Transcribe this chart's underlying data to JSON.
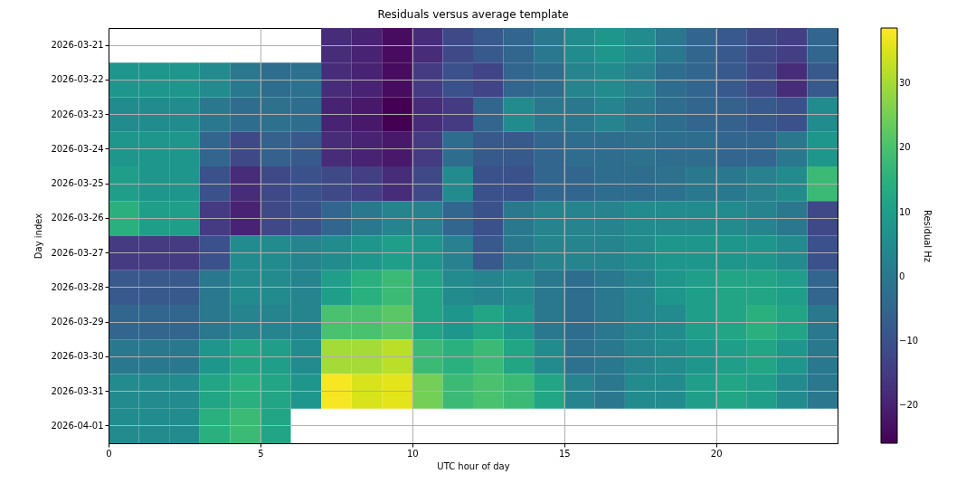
{
  "chart_data": {
    "type": "heatmap",
    "title": "Residuals versus average template",
    "xlabel": "UTC hour of day",
    "ylabel": "Day index",
    "clabel": "Residual Hz",
    "x": [
      0.5,
      1.5,
      2.5,
      3.5,
      4.5,
      5.5,
      6.5,
      7.5,
      8.5,
      9.5,
      10.5,
      11.5,
      12.5,
      13.5,
      14.5,
      15.5,
      16.5,
      17.5,
      18.5,
      19.5,
      20.5,
      21.5,
      22.5,
      23.5
    ],
    "xlim": [
      0,
      24
    ],
    "xticks": [
      0,
      5,
      10,
      15,
      20
    ],
    "y_categories": [
      "2026-03-21",
      "2026-03-22",
      "2026-03-23",
      "2026-03-24",
      "2026-03-25",
      "2026-03-26",
      "2026-03-27",
      "2026-03-28",
      "2026-03-29",
      "2026-03-30",
      "2026-03-31",
      "2026-04-01"
    ],
    "cells": [
      [
        null,
        null,
        null,
        null,
        null,
        null,
        null,
        -18,
        -20,
        -24,
        -18,
        -12,
        -8,
        -5,
        0,
        5,
        8,
        5,
        0,
        -5,
        -8,
        -12,
        -14,
        -5
      ],
      [
        8,
        8,
        8,
        5,
        0,
        -3,
        -2,
        -18,
        -20,
        -24,
        -15,
        -10,
        -13,
        -5,
        -3,
        3,
        5,
        2,
        -3,
        -5,
        -8,
        -12,
        -18,
        -8
      ],
      [
        5,
        5,
        5,
        0,
        -3,
        -2,
        -3,
        -20,
        -22,
        -26,
        -18,
        -15,
        -5,
        5,
        0,
        0,
        3,
        0,
        -3,
        -5,
        -6,
        -8,
        -10,
        5
      ],
      [
        8,
        8,
        8,
        -5,
        -12,
        -6,
        -8,
        -18,
        -20,
        -22,
        -15,
        -3,
        -8,
        -8,
        -5,
        -3,
        -3,
        -2,
        -3,
        -3,
        -5,
        -5,
        0,
        8
      ],
      [
        10,
        8,
        8,
        -10,
        -18,
        -12,
        -10,
        -12,
        -14,
        -18,
        -12,
        5,
        -10,
        -10,
        -5,
        -5,
        -3,
        -3,
        -2,
        0,
        0,
        2,
        5,
        18
      ],
      [
        15,
        10,
        10,
        -15,
        -20,
        -12,
        -10,
        -5,
        0,
        3,
        2,
        -5,
        -10,
        0,
        3,
        3,
        3,
        5,
        5,
        5,
        5,
        3,
        0,
        -12
      ],
      [
        -15,
        -15,
        -15,
        -10,
        5,
        5,
        3,
        5,
        8,
        10,
        8,
        2,
        -8,
        0,
        3,
        3,
        3,
        5,
        8,
        8,
        8,
        8,
        5,
        -10
      ],
      [
        -8,
        -8,
        -8,
        0,
        5,
        5,
        3,
        10,
        15,
        18,
        12,
        5,
        3,
        5,
        0,
        -3,
        0,
        3,
        8,
        10,
        12,
        12,
        10,
        -5
      ],
      [
        -5,
        -5,
        -5,
        0,
        3,
        3,
        3,
        20,
        20,
        22,
        12,
        8,
        12,
        8,
        0,
        -3,
        0,
        3,
        5,
        10,
        12,
        15,
        12,
        0
      ],
      [
        0,
        0,
        0,
        8,
        12,
        10,
        5,
        30,
        30,
        32,
        18,
        15,
        18,
        12,
        5,
        -2,
        0,
        3,
        5,
        8,
        10,
        12,
        8,
        0
      ],
      [
        5,
        5,
        5,
        12,
        15,
        12,
        8,
        38,
        35,
        36,
        25,
        18,
        20,
        18,
        12,
        3,
        0,
        5,
        5,
        10,
        12,
        10,
        5,
        0
      ],
      [
        5,
        5,
        5,
        15,
        18,
        12,
        null,
        null,
        null,
        null,
        null,
        null,
        null,
        null,
        null,
        null,
        null,
        null,
        null,
        null,
        null,
        null,
        null,
        null
      ]
    ],
    "clim": [
      -25.9,
      38.6
    ],
    "cticks": [
      -20,
      -10,
      0,
      10,
      20,
      30
    ],
    "grid": true
  }
}
